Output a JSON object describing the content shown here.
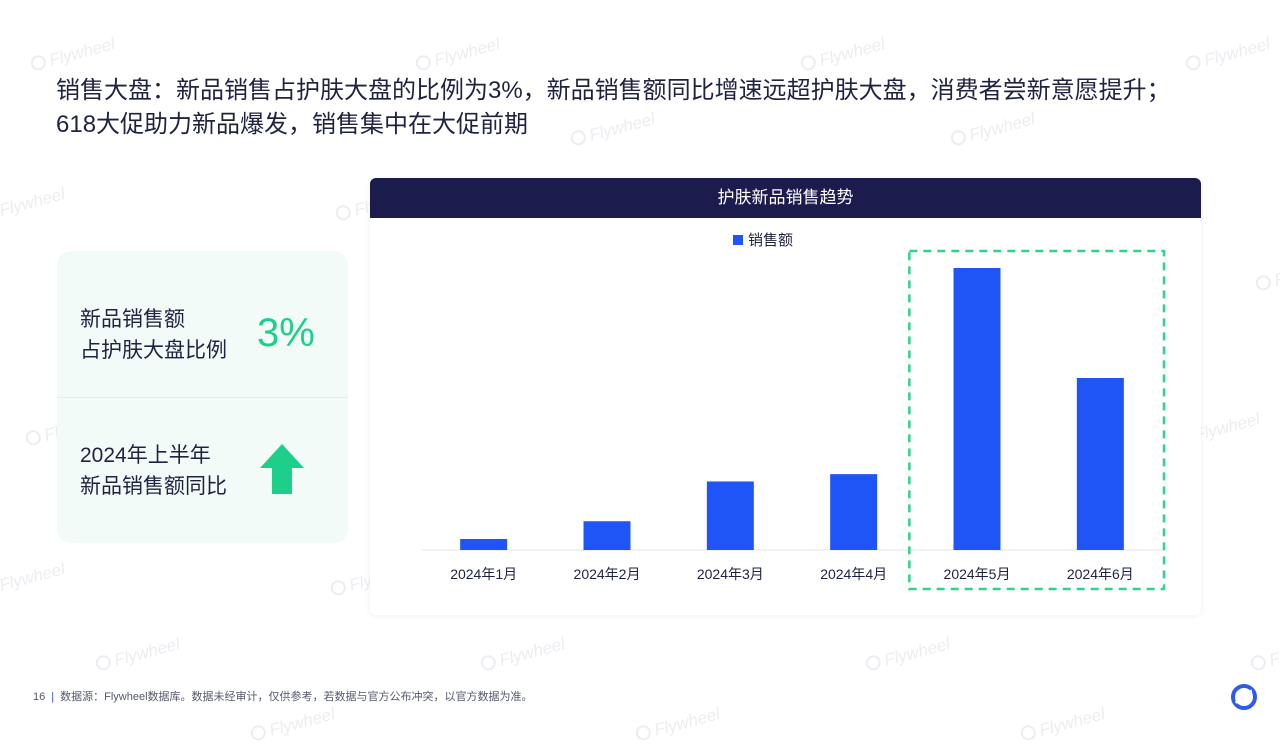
{
  "headline": {
    "line1": "销售大盘：新品销售占护肤大盘的比例为3%，新品销售额同比增速远超护肤大盘，消费者尝新意愿提升；",
    "line2": "618大促助力新品爆发，销售集中在大促前期"
  },
  "kpis": [
    {
      "label_line1": "新品销售额",
      "label_line2": "占护肤大盘比例",
      "value": "3%"
    },
    {
      "label_line1": "2024年上半年",
      "label_line2": "新品销售额同比",
      "icon": "arrow-up-icon"
    }
  ],
  "chart_data": {
    "type": "bar",
    "title": "护肤新品销售趋势",
    "legend": "top-center",
    "categories": [
      "2024年1月",
      "2024年2月",
      "2024年3月",
      "2024年4月",
      "2024年5月",
      "2024年6月"
    ],
    "series": [
      {
        "name": "销售额",
        "values": [
          3.9,
          10.2,
          24.3,
          26.9,
          100,
          61
        ]
      }
    ],
    "ylim": [
      0,
      100
    ],
    "grid": false,
    "highlight": {
      "categories": [
        "2024年5月",
        "2024年6月"
      ],
      "style": "dashed",
      "color": "#2dd58b"
    },
    "bar_color": "#1f54f6"
  },
  "watermark_text": "Flywheel",
  "footer": {
    "page_number": "16",
    "separator": "|",
    "source": "数据源：Flywheel数据库。数据未经审计，仅供参考，若数据与官方公布冲突，以官方数据为准。"
  },
  "colors": {
    "accent_green": "#1ecf8a",
    "header_navy": "#1c1b4e",
    "bar_blue": "#1f54f6"
  }
}
